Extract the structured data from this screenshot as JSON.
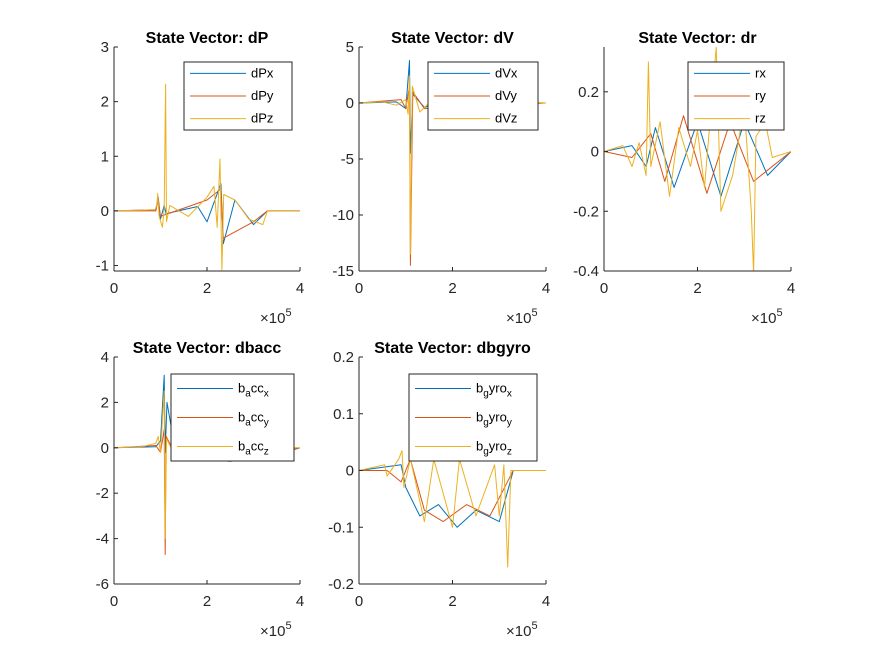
{
  "window": {
    "figure": "State Vector"
  },
  "chart_data": [
    {
      "type": "line",
      "title": "State Vector: dP",
      "xlim": [
        0,
        400000
      ],
      "ylim": [
        -1.1,
        3
      ],
      "x_ticks": [
        "0",
        "2",
        "4"
      ],
      "x_tick_values": [
        0,
        200000,
        400000
      ],
      "x_exponent": "5",
      "y_ticks": [
        "-1",
        "0",
        "1",
        "2",
        "3"
      ],
      "y_tick_values": [
        -1,
        0,
        1,
        2,
        3
      ],
      "legend": {
        "placement": "top-right",
        "entries": [
          {
            "base": "dPx"
          },
          {
            "base": "dPy"
          },
          {
            "base": "dPz"
          }
        ]
      },
      "series": [
        {
          "name": "dPx",
          "color": "#0072BD",
          "points": [
            [
              0,
              0
            ],
            [
              90000,
              0.02
            ],
            [
              95000,
              0.25
            ],
            [
              100000,
              -0.15
            ],
            [
              108000,
              0.1
            ],
            [
              112000,
              -0.05
            ],
            [
              180000,
              0.08
            ],
            [
              200000,
              -0.2
            ],
            [
              230000,
              0.5
            ],
            [
              235000,
              -0.6
            ],
            [
              260000,
              0.2
            ],
            [
              300000,
              -0.25
            ],
            [
              330000,
              0
            ],
            [
              400000,
              0
            ]
          ]
        },
        {
          "name": "dPy",
          "color": "#D95319",
          "points": [
            [
              0,
              0
            ],
            [
              90000,
              0
            ],
            [
              95000,
              0.2
            ],
            [
              100000,
              -0.1
            ],
            [
              200000,
              0.2
            ],
            [
              230000,
              0.4
            ],
            [
              235000,
              -0.5
            ],
            [
              300000,
              -0.2
            ],
            [
              330000,
              0
            ],
            [
              400000,
              0
            ]
          ]
        },
        {
          "name": "dPz",
          "color": "#EDB120",
          "points": [
            [
              0,
              0
            ],
            [
              88000,
              0.02
            ],
            [
              92000,
              0.1
            ],
            [
              94000,
              0.32
            ],
            [
              97000,
              -0.1
            ],
            [
              104000,
              -0.3
            ],
            [
              108000,
              0.05
            ],
            [
              111000,
              2.32
            ],
            [
              113000,
              -0.2
            ],
            [
              120000,
              0.1
            ],
            [
              160000,
              -0.1
            ],
            [
              200000,
              0.25
            ],
            [
              215000,
              0.45
            ],
            [
              222000,
              -0.3
            ],
            [
              228000,
              0.95
            ],
            [
              232000,
              -1.08
            ],
            [
              236000,
              0.3
            ],
            [
              260000,
              0.2
            ],
            [
              290000,
              -0.15
            ],
            [
              320000,
              -0.25
            ],
            [
              330000,
              0
            ],
            [
              400000,
              0
            ]
          ]
        }
      ]
    },
    {
      "type": "line",
      "title": "State Vector: dV",
      "xlim": [
        0,
        400000
      ],
      "ylim": [
        -15,
        5
      ],
      "x_ticks": [
        "0",
        "2",
        "4"
      ],
      "x_tick_values": [
        0,
        200000,
        400000
      ],
      "x_exponent": "5",
      "y_ticks": [
        "-15",
        "-10",
        "-5",
        "0",
        "5"
      ],
      "y_tick_values": [
        -15,
        -10,
        -5,
        0,
        5
      ],
      "legend": {
        "placement": "top-right",
        "entries": [
          {
            "base": "dVx"
          },
          {
            "base": "dVy"
          },
          {
            "base": "dVz"
          }
        ]
      },
      "series": [
        {
          "name": "dVx",
          "color": "#0072BD",
          "points": [
            [
              0,
              0
            ],
            [
              80000,
              0.1
            ],
            [
              100000,
              -0.5
            ],
            [
              108000,
              3.8
            ],
            [
              110000,
              -4.5
            ],
            [
              115000,
              0.8
            ],
            [
              140000,
              -0.4
            ],
            [
              180000,
              0.2
            ],
            [
              400000,
              0
            ]
          ]
        },
        {
          "name": "dVy",
          "color": "#D95319",
          "points": [
            [
              0,
              0
            ],
            [
              90000,
              0.3
            ],
            [
              100000,
              -0.5
            ],
            [
              108000,
              1.5
            ],
            [
              110000,
              -14.5
            ],
            [
              115000,
              1.0
            ],
            [
              140000,
              -0.5
            ],
            [
              400000,
              0
            ]
          ]
        },
        {
          "name": "dVz",
          "color": "#EDB120",
          "points": [
            [
              0,
              0
            ],
            [
              50000,
              0.1
            ],
            [
              80000,
              -0.2
            ],
            [
              100000,
              0.3
            ],
            [
              105000,
              -1.0
            ],
            [
              108000,
              2.4
            ],
            [
              110000,
              -13.5
            ],
            [
              114000,
              1.5
            ],
            [
              130000,
              -0.8
            ],
            [
              160000,
              0.4
            ],
            [
              400000,
              0
            ]
          ]
        }
      ]
    },
    {
      "type": "line",
      "title": "State Vector: dr",
      "xlim": [
        0,
        400000
      ],
      "ylim": [
        -0.4,
        0.35
      ],
      "x_ticks": [
        "0",
        "2",
        "4"
      ],
      "x_tick_values": [
        0,
        200000,
        400000
      ],
      "x_exponent": "5",
      "y_ticks": [
        "-0.4",
        "-0.2",
        "0",
        "0.2"
      ],
      "y_tick_values": [
        -0.4,
        -0.2,
        0,
        0.2
      ],
      "legend": {
        "placement": "top-right",
        "entries": [
          {
            "base": "rx"
          },
          {
            "base": "ry"
          },
          {
            "base": "rz"
          }
        ]
      },
      "series": [
        {
          "name": "rx",
          "color": "#0072BD",
          "points": [
            [
              0,
              0
            ],
            [
              60000,
              0.02
            ],
            [
              90000,
              -0.05
            ],
            [
              110000,
              0.08
            ],
            [
              150000,
              -0.12
            ],
            [
              200000,
              0.1
            ],
            [
              250000,
              -0.15
            ],
            [
              300000,
              0.1
            ],
            [
              350000,
              -0.08
            ],
            [
              400000,
              0
            ]
          ]
        },
        {
          "name": "ry",
          "color": "#D95319",
          "points": [
            [
              0,
              0
            ],
            [
              60000,
              -0.02
            ],
            [
              100000,
              0.06
            ],
            [
              130000,
              -0.1
            ],
            [
              170000,
              0.12
            ],
            [
              220000,
              -0.14
            ],
            [
              270000,
              0.1
            ],
            [
              320000,
              -0.1
            ],
            [
              400000,
              0
            ]
          ]
        },
        {
          "name": "rz",
          "color": "#EDB120",
          "points": [
            [
              0,
              0
            ],
            [
              40000,
              0.02
            ],
            [
              60000,
              -0.05
            ],
            [
              75000,
              0.03
            ],
            [
              90000,
              -0.08
            ],
            [
              95000,
              0.3
            ],
            [
              100000,
              -0.05
            ],
            [
              120000,
              0.1
            ],
            [
              140000,
              -0.15
            ],
            [
              160000,
              0.08
            ],
            [
              185000,
              -0.05
            ],
            [
              200000,
              0.07
            ],
            [
              215000,
              -0.12
            ],
            [
              240000,
              0.35
            ],
            [
              250000,
              -0.2
            ],
            [
              275000,
              -0.08
            ],
            [
              300000,
              0.15
            ],
            [
              315000,
              -0.2
            ],
            [
              320000,
              -0.41
            ],
            [
              325000,
              0.05
            ],
            [
              345000,
              0.1
            ],
            [
              360000,
              -0.02
            ],
            [
              400000,
              0
            ]
          ]
        }
      ]
    },
    {
      "type": "line",
      "title": "State Vector: dbacc",
      "xlim": [
        0,
        400000
      ],
      "ylim": [
        -6,
        4
      ],
      "x_ticks": [
        "0",
        "2",
        "4"
      ],
      "x_tick_values": [
        0,
        200000,
        400000
      ],
      "x_exponent": "5",
      "y_ticks": [
        "-6",
        "-4",
        "-2",
        "0",
        "2",
        "4"
      ],
      "y_tick_values": [
        -6,
        -4,
        -2,
        0,
        2,
        4
      ],
      "legend": {
        "placement": "top-right",
        "entries": [
          {
            "base": "b",
            "sub1": "a",
            "mid": "cc",
            "sub2": "x"
          },
          {
            "base": "b",
            "sub1": "a",
            "mid": "cc",
            "sub2": "y"
          },
          {
            "base": "b",
            "sub1": "a",
            "mid": "cc",
            "sub2": "z"
          }
        ]
      },
      "series": [
        {
          "name": "b_acc_x",
          "color": "#0072BD",
          "points": [
            [
              0,
              0
            ],
            [
              90000,
              0.05
            ],
            [
              100000,
              0.3
            ],
            [
              108000,
              3.2
            ],
            [
              110000,
              -0.2
            ],
            [
              114000,
              2.0
            ],
            [
              130000,
              0.1
            ],
            [
              200000,
              -0.1
            ],
            [
              240000,
              0.2
            ],
            [
              330000,
              -0.4
            ],
            [
              400000,
              0
            ]
          ]
        },
        {
          "name": "b_acc_y",
          "color": "#D95319",
          "points": [
            [
              0,
              0
            ],
            [
              90000,
              0.1
            ],
            [
              100000,
              -0.2
            ],
            [
              108000,
              0.8
            ],
            [
              110000,
              -4.7
            ],
            [
              112000,
              0.5
            ],
            [
              130000,
              -0.2
            ],
            [
              200000,
              -0.5
            ],
            [
              250000,
              -0.6
            ],
            [
              400000,
              0
            ]
          ]
        },
        {
          "name": "b_acc_z",
          "color": "#EDB120",
          "points": [
            [
              0,
              0
            ],
            [
              60000,
              0.05
            ],
            [
              90000,
              0.2
            ],
            [
              95000,
              0.5
            ],
            [
              100000,
              -0.2
            ],
            [
              108000,
              2.5
            ],
            [
              110000,
              -4.0
            ],
            [
              113000,
              0.4
            ],
            [
              130000,
              -0.3
            ],
            [
              200000,
              0.1
            ],
            [
              400000,
              0
            ]
          ]
        }
      ]
    },
    {
      "type": "line",
      "title": "State Vector: dbgyro",
      "xlim": [
        0,
        400000
      ],
      "ylim": [
        -0.2,
        0.2
      ],
      "x_ticks": [
        "0",
        "2",
        "4"
      ],
      "x_tick_values": [
        0,
        200000,
        400000
      ],
      "x_exponent": "5",
      "y_ticks": [
        "-0.2",
        "-0.1",
        "0",
        "0.1",
        "0.2"
      ],
      "y_tick_values": [
        -0.2,
        -0.1,
        0,
        0.1,
        0.2
      ],
      "legend": {
        "placement": "top-right",
        "entries": [
          {
            "base": "b",
            "sub1": "g",
            "mid": "yro",
            "sub2": "x"
          },
          {
            "base": "b",
            "sub1": "g",
            "mid": "yro",
            "sub2": "y"
          },
          {
            "base": "b",
            "sub1": "g",
            "mid": "yro",
            "sub2": "z"
          }
        ]
      },
      "series": [
        {
          "name": "b_gyro_x",
          "color": "#0072BD",
          "points": [
            [
              0,
              0
            ],
            [
              90000,
              0.01
            ],
            [
              100000,
              -0.03
            ],
            [
              130000,
              -0.08
            ],
            [
              170000,
              -0.06
            ],
            [
              210000,
              -0.1
            ],
            [
              250000,
              -0.07
            ],
            [
              300000,
              -0.09
            ],
            [
              330000,
              0
            ],
            [
              400000,
              0
            ]
          ]
        },
        {
          "name": "b_gyro_y",
          "color": "#D95319",
          "points": [
            [
              0,
              0
            ],
            [
              60000,
              0
            ],
            [
              90000,
              -0.02
            ],
            [
              110000,
              0.02
            ],
            [
              140000,
              -0.07
            ],
            [
              180000,
              -0.09
            ],
            [
              230000,
              -0.06
            ],
            [
              280000,
              -0.08
            ],
            [
              330000,
              0
            ],
            [
              400000,
              0
            ]
          ]
        },
        {
          "name": "b_gyro_z",
          "color": "#EDB120",
          "points": [
            [
              0,
              0
            ],
            [
              55000,
              0.01
            ],
            [
              60000,
              -0.01
            ],
            [
              85000,
              0.02
            ],
            [
              92000,
              0.035
            ],
            [
              96000,
              -0.03
            ],
            [
              110000,
              0.02
            ],
            [
              140000,
              -0.09
            ],
            [
              160000,
              0.02
            ],
            [
              200000,
              -0.1
            ],
            [
              215000,
              0.02
            ],
            [
              250000,
              -0.08
            ],
            [
              290000,
              0.01
            ],
            [
              300000,
              -0.08
            ],
            [
              310000,
              0.01
            ],
            [
              318000,
              -0.17
            ],
            [
              325000,
              0.0
            ],
            [
              400000,
              0
            ]
          ]
        }
      ]
    }
  ]
}
